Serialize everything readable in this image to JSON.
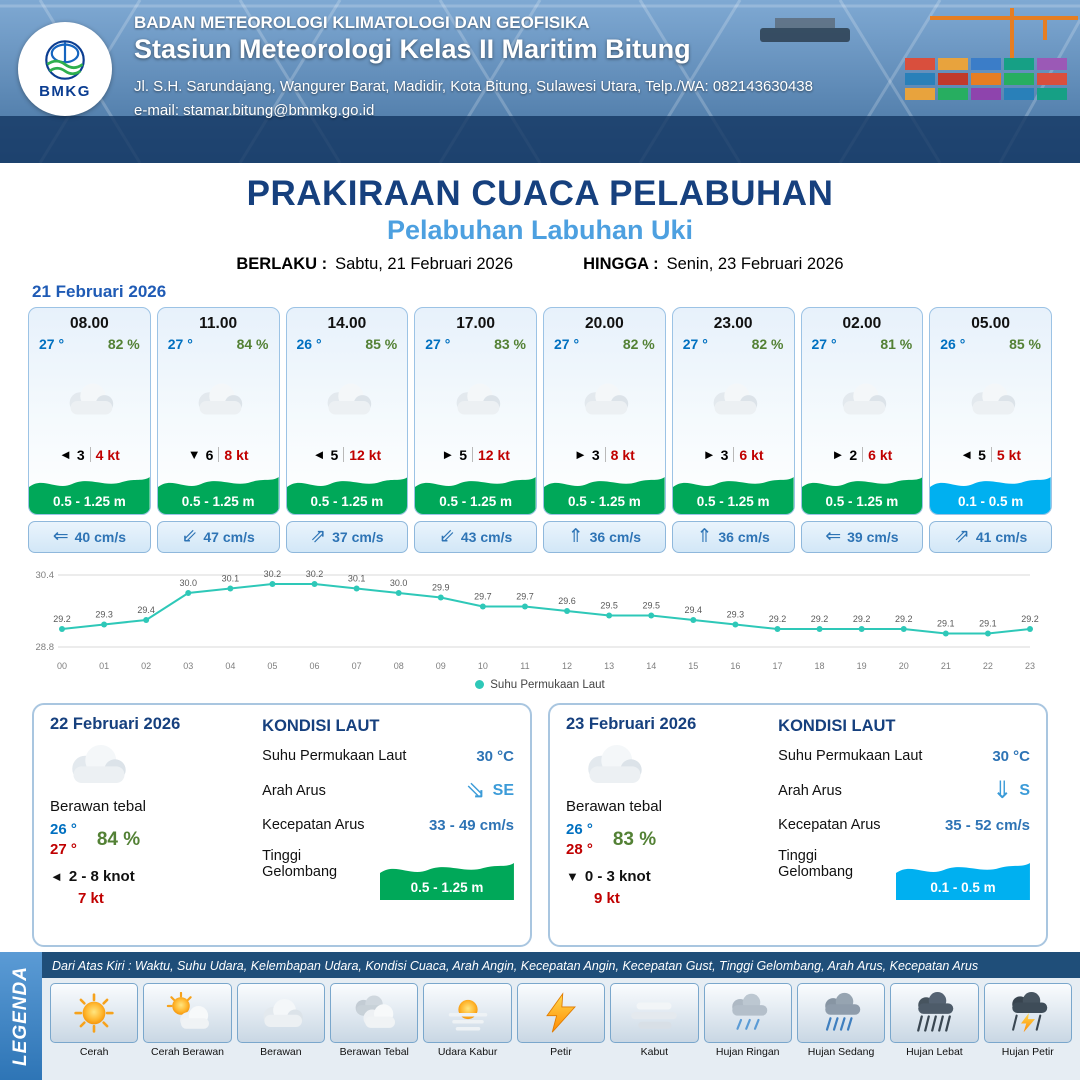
{
  "colors": {
    "title_blue": "#16407e",
    "subtitle_blue": "#4da0e0",
    "temp_blue": "#0070c0",
    "humidity_green": "#538135",
    "gust_red": "#c00000",
    "wave_green": "#00a859",
    "wave_blue": "#00b0f0",
    "current_blue": "#2e74b5",
    "chart_line_teal": "#2ec8b8",
    "footer_navy": "#1f4e79"
  },
  "header": {
    "logo": "BMKG",
    "agency": "BADAN METEOROLOGI KLIMATOLOGI DAN GEOFISIKA",
    "station": "Stasiun Meteorologi Kelas II Maritim Bitung",
    "address": "Jl. S.H. Sarundajang, Wangurer Barat, Madidir, Kota Bitung, Sulawesi Utara, Telp./WA: 082143630438",
    "email": "e-mail: stamar.bitung@bmmkg.go.id"
  },
  "title": {
    "main": "PRAKIRAAN CUACA PELABUHAN",
    "subtitle": "Pelabuhan Labuhan Uki",
    "berlaku_label": "BERLAKU :",
    "berlaku_value": "Sabtu, 21 Februari 2026",
    "hingga_label": "HINGGA :",
    "hingga_value": "Senin, 23 Februari 2026"
  },
  "forecast": {
    "date": "21 Februari 2026",
    "cards": [
      {
        "time": "08.00",
        "temp": "27 °",
        "humidity": "82 %",
        "condition_icon": "cloud-icon",
        "wind_arrow": "◄",
        "wind_speed": "3",
        "gust": "4 kt",
        "wave": "0.5 - 1.25 m",
        "wave_color": "green",
        "current_arrow": "⇐",
        "current": "40 cm/s"
      },
      {
        "time": "11.00",
        "temp": "27 °",
        "humidity": "84 %",
        "condition_icon": "cloud-icon",
        "wind_arrow": "▼",
        "wind_speed": "6",
        "gust": "8 kt",
        "wave": "0.5 - 1.25 m",
        "wave_color": "green",
        "current_arrow": "⇙",
        "current": "47 cm/s"
      },
      {
        "time": "14.00",
        "temp": "26 °",
        "humidity": "85 %",
        "condition_icon": "cloud-icon",
        "wind_arrow": "◄",
        "wind_speed": "5",
        "gust": "12 kt",
        "wave": "0.5 - 1.25 m",
        "wave_color": "green",
        "current_arrow": "⇗",
        "current": "37 cm/s"
      },
      {
        "time": "17.00",
        "temp": "27 °",
        "humidity": "83 %",
        "condition_icon": "cloud-icon",
        "wind_arrow": "►",
        "wind_speed": "5",
        "gust": "12 kt",
        "wave": "0.5 - 1.25 m",
        "wave_color": "green",
        "current_arrow": "⇙",
        "current": "43 cm/s"
      },
      {
        "time": "20.00",
        "temp": "27 °",
        "humidity": "82 %",
        "condition_icon": "cloud-icon",
        "wind_arrow": "►",
        "wind_speed": "3",
        "gust": "8 kt",
        "wave": "0.5 - 1.25 m",
        "wave_color": "green",
        "current_arrow": "⇑",
        "current": "36 cm/s"
      },
      {
        "time": "23.00",
        "temp": "27 °",
        "humidity": "82 %",
        "condition_icon": "cloud-icon",
        "wind_arrow": "►",
        "wind_speed": "3",
        "gust": "6 kt",
        "wave": "0.5 - 1.25 m",
        "wave_color": "green",
        "current_arrow": "⇑",
        "current": "36 cm/s"
      },
      {
        "time": "02.00",
        "temp": "27 °",
        "humidity": "81 %",
        "condition_icon": "cloud-icon",
        "wind_arrow": "►",
        "wind_speed": "2",
        "gust": "6 kt",
        "wave": "0.5 - 1.25 m",
        "wave_color": "green",
        "current_arrow": "⇐",
        "current": "39 cm/s"
      },
      {
        "time": "05.00",
        "temp": "26 °",
        "humidity": "85 %",
        "condition_icon": "cloud-icon",
        "wind_arrow": "◄",
        "wind_speed": "5",
        "gust": "5 kt",
        "wave": "0.1 - 0.5 m",
        "wave_color": "blue",
        "current_arrow": "⇗",
        "current": "41 cm/s"
      }
    ]
  },
  "chart_data": {
    "type": "line",
    "series_name": "Suhu Permukaan Laut",
    "x": [
      "00",
      "01",
      "02",
      "03",
      "04",
      "05",
      "06",
      "07",
      "08",
      "09",
      "10",
      "11",
      "12",
      "13",
      "14",
      "15",
      "16",
      "17",
      "18",
      "19",
      "20",
      "21",
      "22",
      "23"
    ],
    "values": [
      29.2,
      29.3,
      29.4,
      30.0,
      30.1,
      30.2,
      30.2,
      30.1,
      30.0,
      29.9,
      29.7,
      29.7,
      29.6,
      29.5,
      29.5,
      29.4,
      29.3,
      29.2,
      29.2,
      29.2,
      29.2,
      29.1,
      29.1,
      29.2
    ],
    "ylim": [
      28.8,
      30.4
    ],
    "line_color": "#2ec8b8",
    "grid": true,
    "legend_position": "bottom"
  },
  "day_cards": [
    {
      "date": "22 Februari 2026",
      "condition_icon": "cloud-icon",
      "condition": "Berawan tebal",
      "temp_min": "26 °",
      "temp_max": "27 °",
      "humidity": "84 %",
      "wind_arrow": "◄",
      "wind_range": "2 - 8 knot",
      "gust": "7 kt",
      "sea": {
        "heading": "KONDISI LAUT",
        "sst_label": "Suhu Permukaan Laut",
        "sst_value": "30 °C",
        "current_dir_label": "Arah Arus",
        "current_dir_arrow": "⇘",
        "current_dir_value": "SE",
        "current_speed_label": "Kecepatan Arus",
        "current_speed_value": "33 - 49 cm/s",
        "wave_label": "Tinggi Gelombang",
        "wave_value": "0.5 - 1.25 m",
        "wave_color": "green"
      }
    },
    {
      "date": "23 Februari 2026",
      "condition_icon": "cloud-icon",
      "condition": "Berawan tebal",
      "temp_min": "26 °",
      "temp_max": "28 °",
      "humidity": "83 %",
      "wind_arrow": "▼",
      "wind_range": "0  - 3 knot",
      "gust": "9 kt",
      "sea": {
        "heading": "KONDISI LAUT",
        "sst_label": "Suhu Permukaan Laut",
        "sst_value": "30 °C",
        "current_dir_label": "Arah Arus",
        "current_dir_arrow": "⇓",
        "current_dir_value": "S",
        "current_speed_label": "Kecepatan Arus",
        "current_speed_value": "35 - 52 cm/s",
        "wave_label": "Tinggi Gelombang",
        "wave_value": "0.1 - 0.5 m",
        "wave_color": "blue"
      }
    }
  ],
  "legend": {
    "vertical_label": "LEGENDA",
    "note": "Dari Atas Kiri : Waktu, Suhu Udara, Kelembapan Udara, Kondisi Cuaca, Arah Angin, Kecepatan Angin, Kecepatan Gust, Tinggi Gelombang, Arah Arus, Kecepatan Arus",
    "items": [
      {
        "label": "Cerah",
        "icon": "sun-icon"
      },
      {
        "label": "Cerah Berawan",
        "icon": "sun-cloud-icon"
      },
      {
        "label": "Berawan",
        "icon": "cloud-icon"
      },
      {
        "label": "Berawan Tebal",
        "icon": "clouds-icon"
      },
      {
        "label": "Udara Kabur",
        "icon": "haze-icon"
      },
      {
        "label": "Petir",
        "icon": "lightning-icon"
      },
      {
        "label": "Kabut",
        "icon": "fog-icon"
      },
      {
        "label": "Hujan Ringan",
        "icon": "rain-light-icon"
      },
      {
        "label": "Hujan Sedang",
        "icon": "rain-moderate-icon"
      },
      {
        "label": "Hujan Lebat",
        "icon": "rain-heavy-icon"
      },
      {
        "label": "Hujan Petir",
        "icon": "storm-icon"
      }
    ]
  }
}
